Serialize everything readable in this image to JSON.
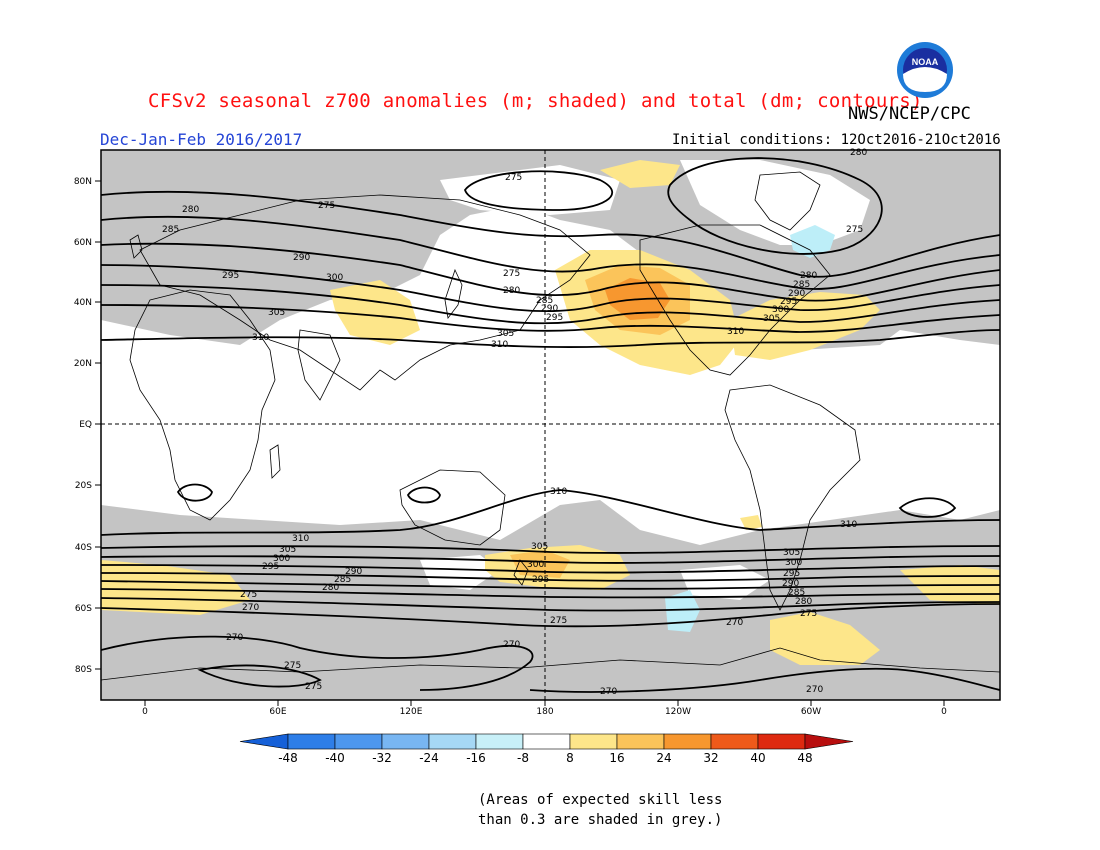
{
  "title": "CFSv2 seasonal z700 anomalies (m; shaded) and total (dm; contours)",
  "agency": "NWS/NCEP/CPC",
  "season": "Dec-Jan-Feb 2016/2017",
  "initial_conditions": "Initial conditions: 12Oct2016-21Oct2016",
  "logo_text": "NOAA",
  "caption_line1": "(Areas of expected skill less",
  "caption_line2": "than 0.3 are shaded in grey.)",
  "lat_labels": [
    "80N",
    "60N",
    "40N",
    "20N",
    "EQ",
    "20S",
    "40S",
    "60S",
    "80S"
  ],
  "lon_labels": [
    "0",
    "60E",
    "120E",
    "180",
    "120W",
    "60W",
    "0"
  ],
  "colorbar": {
    "labels": [
      "-48",
      "-40",
      "-32",
      "-24",
      "-16",
      "-8",
      "8",
      "16",
      "24",
      "32",
      "40",
      "48"
    ],
    "colors": [
      "#1560d8",
      "#2e7ee8",
      "#4d97ee",
      "#78b6f2",
      "#a6d8f5",
      "#c8f0f8",
      "#ffffff",
      "#fde68a",
      "#fbc45a",
      "#f7972f",
      "#ee5a1a",
      "#de2a10",
      "#b80e0e"
    ]
  },
  "contour_labels": [
    {
      "text": "280",
      "lon": -95
    },
    {
      "text": "275",
      "lon": 60
    },
    {
      "text": "280",
      "lon": 15
    },
    {
      "text": "285",
      "lon": 10
    },
    {
      "text": "290",
      "lon": 30
    },
    {
      "text": "295",
      "lon": 10
    },
    {
      "text": "300",
      "lon": 45
    },
    {
      "text": "305",
      "lon": 35
    },
    {
      "text": "310",
      "lon": 28
    },
    {
      "text": "275",
      "lon": 150
    },
    {
      "text": "280",
      "lon": 150
    },
    {
      "text": "285",
      "lon": 165
    },
    {
      "text": "290",
      "lon": 165
    },
    {
      "text": "295",
      "lon": 160
    },
    {
      "text": "305",
      "lon": 145
    },
    {
      "text": "310",
      "lon": 155
    },
    {
      "text": "275",
      "lon": -95
    },
    {
      "text": "275",
      "lon": -33
    },
    {
      "text": "280",
      "lon": -50
    },
    {
      "text": "285",
      "lon": -45
    },
    {
      "text": "290",
      "lon": -48
    },
    {
      "text": "295",
      "lon": -45
    },
    {
      "text": "300",
      "lon": -48
    },
    {
      "text": "305",
      "lon": -52
    },
    {
      "text": "310",
      "lon": -85
    },
    {
      "text": "310",
      "lon": 173
    },
    {
      "text": "310",
      "lon": 47
    },
    {
      "text": "310",
      "lon": -27
    },
    {
      "text": "305",
      "lon": 45
    },
    {
      "text": "300",
      "lon": 42
    },
    {
      "text": "295",
      "lon": 38
    },
    {
      "text": "290",
      "lon": 63
    },
    {
      "text": "285",
      "lon": 57
    },
    {
      "text": "280",
      "lon": 53
    },
    {
      "text": "275",
      "lon": 32
    },
    {
      "text": "270",
      "lon": 30
    },
    {
      "text": "305",
      "lon": 178
    },
    {
      "text": "300",
      "lon": 176
    },
    {
      "text": "295",
      "lon": 178
    },
    {
      "text": "275",
      "lon": 187
    },
    {
      "text": "305",
      "lon": -54
    },
    {
      "text": "300",
      "lon": -53
    },
    {
      "text": "295",
      "lon": -54
    },
    {
      "text": "290",
      "lon": -55
    },
    {
      "text": "285",
      "lon": -52
    },
    {
      "text": "280",
      "lon": -50
    },
    {
      "text": "275",
      "lon": -52
    },
    {
      "text": "270",
      "lon": -95
    },
    {
      "text": "270",
      "lon": 28
    },
    {
      "text": "270",
      "lon": 165
    },
    {
      "text": "275",
      "lon": 45
    },
    {
      "text": "275",
      "lon": 53
    },
    {
      "text": "270",
      "lon": -123
    },
    {
      "text": "270",
      "lon": -60
    }
  ]
}
